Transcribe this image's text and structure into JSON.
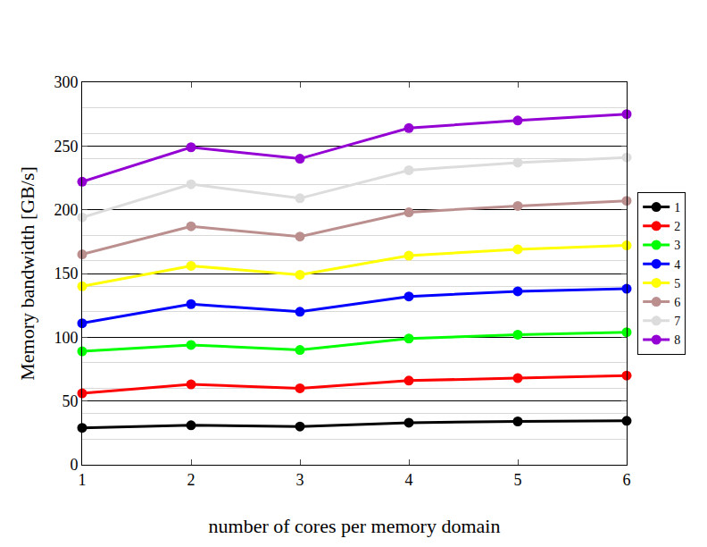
{
  "chart_data": {
    "type": "line",
    "x_label": "number of cores per memory domain",
    "y_label": "Memory bandwidth [GB/s]",
    "x": [
      1,
      2,
      3,
      4,
      5,
      6
    ],
    "xlim": [
      1,
      6
    ],
    "xticks": [
      1,
      2,
      3,
      4,
      5,
      6
    ],
    "ylim": [
      0,
      300
    ],
    "yticks": [
      0,
      50,
      100,
      150,
      200,
      250,
      300
    ],
    "grid": true,
    "legend": "right",
    "marker": "circle",
    "series": [
      {
        "name": "1",
        "color": "#000000",
        "values": [
          29,
          31,
          30,
          33,
          34,
          34.5
        ]
      },
      {
        "name": "2",
        "color": "#ff0000",
        "values": [
          56,
          63,
          60,
          66,
          68,
          70
        ]
      },
      {
        "name": "3",
        "color": "#00ff00",
        "values": [
          89,
          94,
          90,
          99,
          102,
          104
        ]
      },
      {
        "name": "4",
        "color": "#0000ff",
        "values": [
          111,
          126,
          120,
          132,
          136,
          138
        ]
      },
      {
        "name": "5",
        "color": "#ffff00",
        "values": [
          140,
          156,
          149,
          164,
          169,
          172
        ]
      },
      {
        "name": "6",
        "color": "#bc8f8f",
        "values": [
          165,
          187,
          179,
          198,
          203,
          207
        ]
      },
      {
        "name": "7",
        "color": "#dcdcdc",
        "values": [
          194,
          220,
          209,
          231,
          237,
          241
        ]
      },
      {
        "name": "8",
        "color": "#9400d3",
        "values": [
          222,
          249,
          240,
          264,
          270,
          275
        ]
      }
    ]
  }
}
